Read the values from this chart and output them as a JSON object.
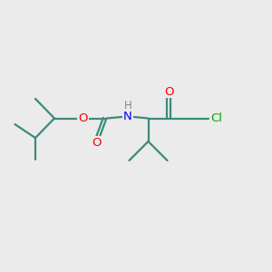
{
  "background_color": "#ebebeb",
  "bond_color": "#3d8a7a",
  "atom_colors": {
    "O": "#ff0000",
    "N": "#0000ff",
    "Cl": "#00aa00",
    "H": "#888888",
    "C": "#3d8a7a"
  },
  "figsize": [
    3.0,
    3.0
  ],
  "dpi": 100,
  "xlim": [
    0,
    10
  ],
  "ylim": [
    0,
    10
  ],
  "lw": 1.6,
  "fs": 9.5,
  "fs_small": 8.5,
  "sep": 0.12
}
